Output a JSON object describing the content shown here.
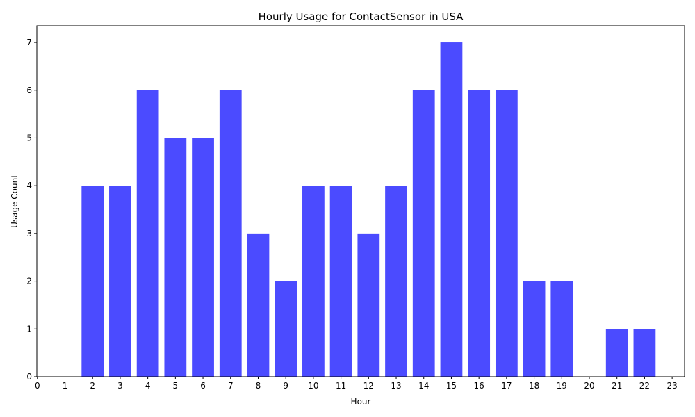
{
  "chart_data": {
    "type": "bar",
    "title": "Hourly Usage for ContactSensor in USA",
    "xlabel": "Hour",
    "ylabel": "Usage Count",
    "categories": [
      0,
      1,
      2,
      3,
      4,
      5,
      6,
      7,
      8,
      9,
      10,
      11,
      12,
      13,
      14,
      15,
      16,
      17,
      18,
      19,
      20,
      21,
      22,
      23
    ],
    "values": [
      0,
      0,
      4,
      4,
      6,
      5,
      5,
      6,
      3,
      2,
      4,
      4,
      3,
      4,
      6,
      7,
      6,
      6,
      2,
      2,
      0,
      1,
      1,
      0
    ],
    "xlim": [
      0,
      23
    ],
    "ylim": [
      0,
      7.35
    ],
    "yticks": [
      0,
      1,
      2,
      3,
      4,
      5,
      6,
      7
    ],
    "bar_color": "#4b4bff",
    "grid": false,
    "legend": "none"
  }
}
